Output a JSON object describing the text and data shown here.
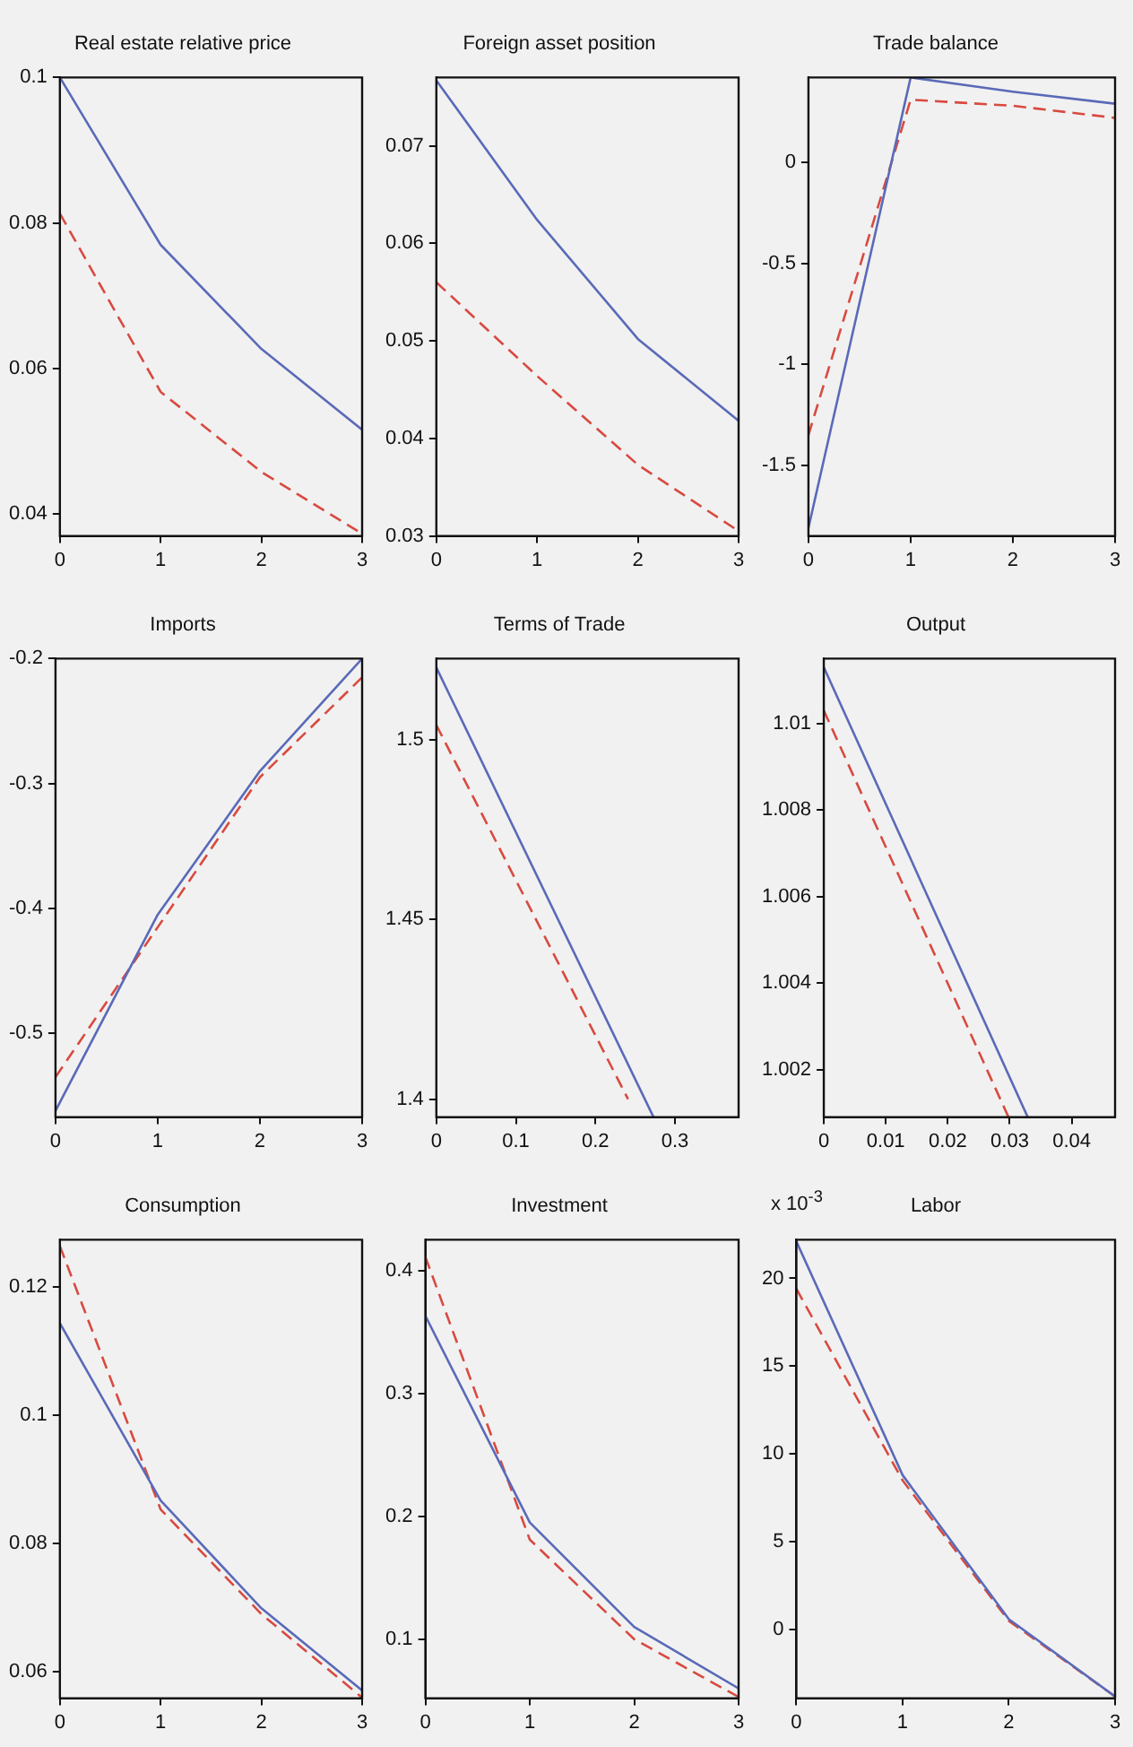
{
  "chart_data": [
    {
      "type": "line",
      "title": "Real estate relative price",
      "x": [
        0,
        1,
        2,
        3
      ],
      "xlim": [
        0,
        3
      ],
      "xticks": [
        0,
        1,
        2,
        3
      ],
      "ylim": [
        0.037,
        0.1
      ],
      "yticks": [
        0.04,
        0.06,
        0.08,
        0.1
      ],
      "grid": false,
      "marker": "none",
      "series": [
        {
          "color": "#5a6ab8",
          "line_style": "solid",
          "values": [
            0.1,
            0.077,
            0.0627,
            0.0516
          ]
        },
        {
          "color": "#d84a40",
          "line_style": "dashed",
          "values": [
            0.0813,
            0.0568,
            0.0458,
            0.0373
          ]
        }
      ]
    },
    {
      "type": "line",
      "title": "Foreign asset position",
      "x": [
        0,
        1,
        2,
        3
      ],
      "xlim": [
        0,
        3
      ],
      "xticks": [
        0,
        1,
        2,
        3
      ],
      "ylim": [
        0.03,
        0.077
      ],
      "yticks": [
        0.03,
        0.04,
        0.05,
        0.06,
        0.07
      ],
      "grid": false,
      "marker": "none",
      "series": [
        {
          "color": "#5a6ab8",
          "line_style": "solid",
          "values": [
            0.0767,
            0.0624,
            0.0502,
            0.0418
          ]
        },
        {
          "color": "#d84a40",
          "line_style": "dashed",
          "values": [
            0.056,
            0.0464,
            0.0373,
            0.0305
          ]
        }
      ]
    },
    {
      "type": "line",
      "title": "Trade balance",
      "x": [
        0,
        1,
        2,
        3
      ],
      "xlim": [
        0,
        3
      ],
      "xticks": [
        0,
        1,
        2,
        3
      ],
      "ylim": [
        -1.85,
        0.42
      ],
      "yticks": [
        -1.5,
        -1,
        -0.5,
        0
      ],
      "grid": false,
      "marker": "none",
      "series": [
        {
          "color": "#5a6ab8",
          "line_style": "solid",
          "values": [
            -1.81,
            0.42,
            0.35,
            0.29
          ]
        },
        {
          "color": "#d84a40",
          "line_style": "dashed",
          "values": [
            -1.35,
            0.31,
            0.28,
            0.22
          ]
        }
      ]
    },
    {
      "type": "line",
      "title": "Imports",
      "x": [
        0,
        1,
        2,
        3
      ],
      "xlim": [
        0,
        3
      ],
      "xticks": [
        0,
        1,
        2,
        3
      ],
      "ylim": [
        -0.567,
        -0.2
      ],
      "yticks": [
        -0.5,
        -0.4,
        -0.3,
        -0.2
      ],
      "grid": false,
      "marker": "none",
      "series": [
        {
          "color": "#5a6ab8",
          "line_style": "solid",
          "values": [
            -0.562,
            -0.405,
            -0.29,
            -0.2
          ]
        },
        {
          "color": "#d84a40",
          "line_style": "dashed",
          "values": [
            -0.535,
            -0.415,
            -0.295,
            -0.215
          ]
        }
      ]
    },
    {
      "type": "line",
      "title": "Terms of Trade",
      "xlim": [
        0,
        0.38
      ],
      "xticks": [
        0,
        0.1,
        0.2,
        0.3
      ],
      "ylim": [
        1.395,
        1.5225
      ],
      "yticks": [
        1.4,
        1.45,
        1.5
      ],
      "grid": false,
      "marker": "none",
      "series": [
        {
          "color": "#5a6ab8",
          "line_style": "solid",
          "x": [
            0,
            0.273
          ],
          "values": [
            1.52,
            1.395
          ]
        },
        {
          "color": "#d84a40",
          "line_style": "dashed",
          "x": [
            0,
            0.241
          ],
          "values": [
            1.504,
            1.4
          ]
        }
      ]
    },
    {
      "type": "line",
      "title": "Output",
      "xlim": [
        0,
        0.047
      ],
      "xticks": [
        0,
        0.01,
        0.02,
        0.03,
        0.04
      ],
      "ylim": [
        1.0009,
        1.0115
      ],
      "yticks": [
        1.002,
        1.004,
        1.006,
        1.008,
        1.01
      ],
      "grid": false,
      "marker": "none",
      "series": [
        {
          "color": "#5a6ab8",
          "line_style": "solid",
          "x": [
            0,
            0.0329
          ],
          "values": [
            1.0113,
            1.0009
          ]
        },
        {
          "color": "#d84a40",
          "line_style": "dashed",
          "x": [
            0,
            0.0298
          ],
          "values": [
            1.0103,
            1.0009
          ]
        }
      ]
    },
    {
      "type": "line",
      "title": "Consumption",
      "x": [
        0,
        1,
        2,
        3
      ],
      "xlim": [
        0,
        3
      ],
      "xticks": [
        0,
        1,
        2,
        3
      ],
      "ylim": [
        0.0559,
        0.1273
      ],
      "yticks": [
        0.06,
        0.08,
        0.1,
        0.12
      ],
      "grid": false,
      "marker": "none",
      "series": [
        {
          "color": "#5a6ab8",
          "line_style": "solid",
          "values": [
            0.1143,
            0.0867,
            0.0699,
            0.0571
          ]
        },
        {
          "color": "#d84a40",
          "line_style": "dashed",
          "values": [
            0.1263,
            0.0853,
            0.069,
            0.056
          ]
        }
      ]
    },
    {
      "type": "line",
      "title": "Investment",
      "x": [
        0,
        1,
        2,
        3
      ],
      "xlim": [
        0,
        3
      ],
      "xticks": [
        0,
        1,
        2,
        3
      ],
      "ylim": [
        0.052,
        0.425
      ],
      "yticks": [
        0.1,
        0.2,
        0.3,
        0.4
      ],
      "grid": false,
      "marker": "none",
      "series": [
        {
          "color": "#5a6ab8",
          "line_style": "solid",
          "values": [
            0.363,
            0.195,
            0.11,
            0.06
          ]
        },
        {
          "color": "#d84a40",
          "line_style": "dashed",
          "values": [
            0.411,
            0.181,
            0.1,
            0.053
          ]
        }
      ]
    },
    {
      "type": "line",
      "title": "Labor",
      "annotations": [
        "x 10$^{-3}$"
      ],
      "x": [
        0,
        1,
        2,
        3
      ],
      "xlim": [
        0,
        3
      ],
      "xticks": [
        0,
        1,
        2,
        3
      ],
      "ylim": [
        -3.9,
        22.2
      ],
      "yticks": [
        0,
        5,
        10,
        15,
        20
      ],
      "grid": false,
      "marker": "none",
      "series": [
        {
          "color": "#5a6ab8",
          "line_style": "solid",
          "values": [
            22.1,
            8.8,
            0.6,
            -3.8
          ]
        },
        {
          "color": "#d84a40",
          "line_style": "dashed",
          "values": [
            19.4,
            8.5,
            0.5,
            -3.8
          ]
        }
      ]
    }
  ]
}
